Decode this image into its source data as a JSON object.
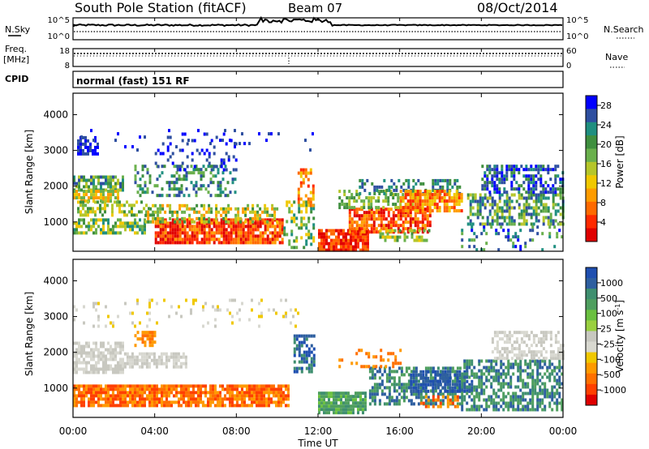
{
  "header": {
    "title": "South Pole Station (fitACF)",
    "beam": "Beam 07",
    "date": "08/Oct/2014"
  },
  "noise_panel": {
    "left_label": "N.Sky",
    "right_label": "N.Search",
    "left_ticks": [
      "10^5",
      "10^0"
    ],
    "right_ticks": [
      "10^5",
      "10^0"
    ]
  },
  "freq_panel": {
    "left_label_1": "Freq.",
    "left_label_2": "[MHz]",
    "right_label": "Nave",
    "left_ticks": [
      "18",
      "8"
    ],
    "right_ticks": [
      "60",
      "0"
    ]
  },
  "cpid_panel": {
    "label": "CPID",
    "mode": "normal (fast) 151 RF"
  },
  "chart_data": [
    {
      "type": "heatmap",
      "name": "power",
      "ylabel": "Slant Range [km]",
      "yticks": [
        1000,
        2000,
        3000,
        4000
      ],
      "ylim": [
        180,
        4600
      ],
      "xlim": [
        0,
        24
      ],
      "colorbar_label": "Power [dB]",
      "colorbar_ticks": [
        "4",
        "8",
        "12",
        "16",
        "20",
        "24",
        "28"
      ],
      "colorbar_colors": [
        "#0000ff",
        "#2e4fa0",
        "#1f8f80",
        "#3f8f3f",
        "#6ab04c",
        "#b5c62a",
        "#f0c800",
        "#ff9c00",
        "#ff6a00",
        "#ff2a00",
        "#e00000"
      ]
    },
    {
      "type": "heatmap",
      "name": "velocity",
      "ylabel": "Slant Range [km]",
      "yticks": [
        1000,
        2000,
        3000,
        4000
      ],
      "ylim": [
        180,
        4600
      ],
      "xlim": [
        0,
        24
      ],
      "colorbar_label": "Velocity [m s^-1]",
      "colorbar_ticks": [
        "1000",
        "500",
        "100",
        "25",
        "-25",
        "-100",
        "-500",
        "-1000"
      ],
      "colorbar_colors": [
        "#1f4fb0",
        "#2e5fa0",
        "#3f8f6f",
        "#4f9f5f",
        "#6ac040",
        "#9ad040",
        "#c8c8c0",
        "#d8d8d0",
        "#f0c800",
        "#ff9a00",
        "#ff7000",
        "#ff4000",
        "#e00000"
      ]
    }
  ],
  "x_axis": {
    "ticks": [
      "00:00",
      "04:00",
      "08:00",
      "12:00",
      "16:00",
      "20:00",
      "00:00"
    ],
    "label": "Time UT"
  }
}
